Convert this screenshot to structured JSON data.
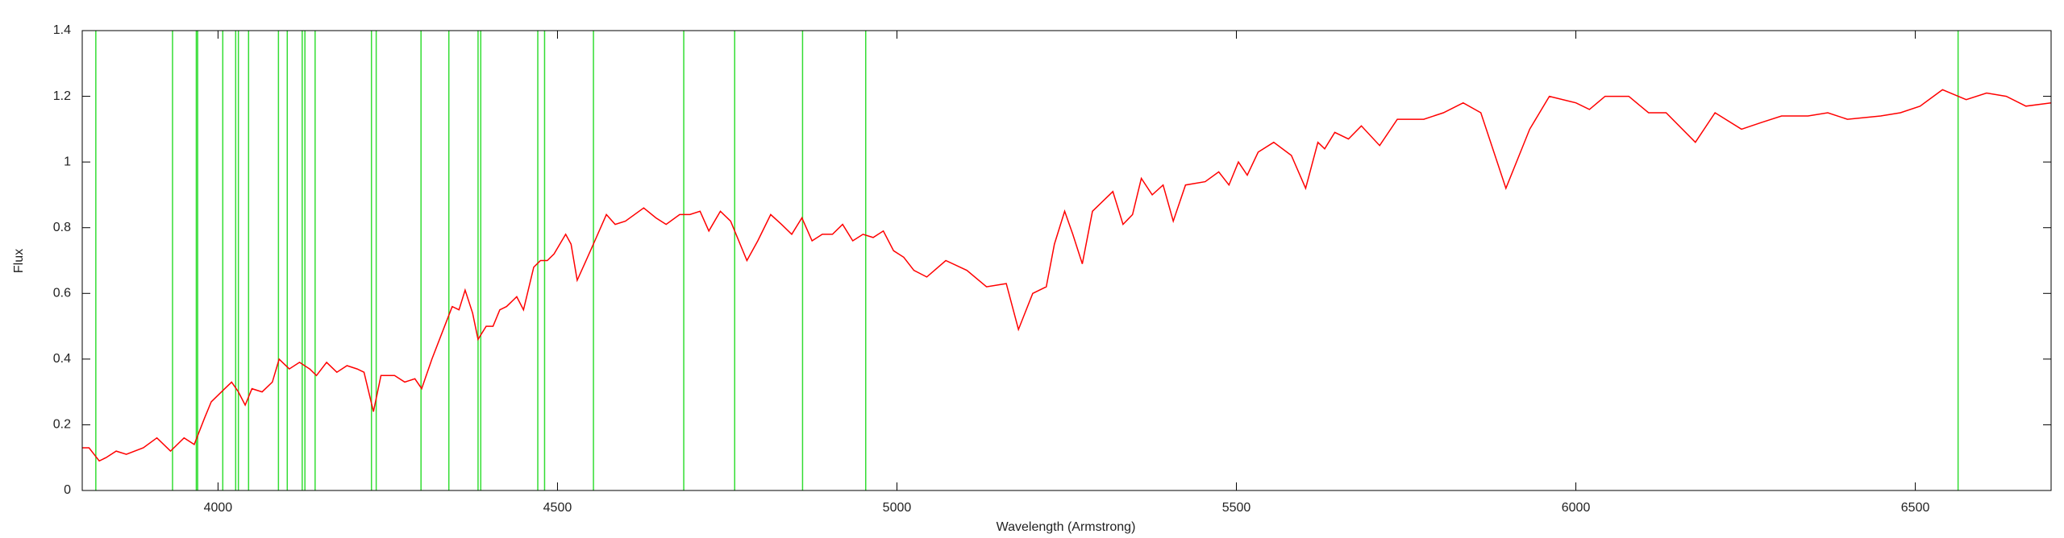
{
  "chart_data": {
    "type": "line",
    "xlabel": "Wavelength (Armstrong)",
    "ylabel": "Flux",
    "xlim": [
      3800,
      6700
    ],
    "ylim": [
      0,
      1.4
    ],
    "xticks": [
      4000,
      4500,
      5000,
      5500,
      6000,
      6500
    ],
    "yticks": [
      0,
      0.2,
      0.4,
      0.6,
      0.8,
      1,
      1.2,
      1.4
    ],
    "x": [
      3800,
      3810,
      3825,
      3835,
      3850,
      3865,
      3890,
      3910,
      3930,
      3950,
      3965,
      3980,
      3990,
      4010,
      4020,
      4030,
      4040,
      4050,
      4065,
      4080,
      4090,
      4105,
      4120,
      4135,
      4145,
      4160,
      4175,
      4190,
      4205,
      4215,
      4229,
      4240,
      4260,
      4275,
      4290,
      4300,
      4315,
      4330,
      4345,
      4355,
      4364,
      4375,
      4383,
      4395,
      4405,
      4415,
      4425,
      4440,
      4450,
      4465,
      4475,
      4485,
      4495,
      4512,
      4520,
      4529,
      4540,
      4555,
      4572,
      4585,
      4600,
      4627,
      4645,
      4660,
      4680,
      4695,
      4710,
      4723,
      4740,
      4755,
      4779,
      4795,
      4814,
      4830,
      4845,
      4860,
      4875,
      4890,
      4905,
      4920,
      4935,
      4950,
      4965,
      4980,
      4995,
      5010,
      5025,
      5044,
      5072,
      5103,
      5132,
      5161,
      5179,
      5200,
      5220,
      5232,
      5247,
      5259,
      5273,
      5288,
      5318,
      5333,
      5347,
      5360,
      5376,
      5392,
      5407,
      5425,
      5454,
      5474,
      5489,
      5503,
      5516,
      5532,
      5555,
      5581,
      5602,
      5620,
      5630,
      5645,
      5665,
      5684,
      5711,
      5737,
      5776,
      5805,
      5834,
      5860,
      5897,
      5932,
      5961,
      6000,
      6020,
      6043,
      6078,
      6107,
      6133,
      6176,
      6205,
      6244,
      6273,
      6303,
      6342,
      6371,
      6400,
      6449,
      6478,
      6507,
      6540,
      6575,
      6605,
      6634,
      6663,
      6700
    ],
    "series": [
      {
        "color": "#ff0000",
        "values": [
          0.13,
          0.13,
          0.09,
          0.1,
          0.12,
          0.11,
          0.13,
          0.16,
          0.12,
          0.16,
          0.14,
          0.22,
          0.27,
          0.31,
          0.33,
          0.3,
          0.26,
          0.31,
          0.3,
          0.33,
          0.4,
          0.37,
          0.39,
          0.37,
          0.35,
          0.39,
          0.36,
          0.38,
          0.37,
          0.36,
          0.24,
          0.35,
          0.35,
          0.33,
          0.34,
          0.31,
          0.4,
          0.48,
          0.56,
          0.55,
          0.61,
          0.54,
          0.46,
          0.5,
          0.5,
          0.55,
          0.56,
          0.59,
          0.55,
          0.68,
          0.7,
          0.7,
          0.72,
          0.78,
          0.75,
          0.64,
          0.69,
          0.76,
          0.84,
          0.81,
          0.82,
          0.86,
          0.83,
          0.81,
          0.84,
          0.84,
          0.85,
          0.79,
          0.85,
          0.82,
          0.7,
          0.76,
          0.84,
          0.81,
          0.78,
          0.83,
          0.76,
          0.78,
          0.78,
          0.81,
          0.76,
          0.78,
          0.77,
          0.79,
          0.73,
          0.71,
          0.67,
          0.65,
          0.7,
          0.67,
          0.62,
          0.63,
          0.49,
          0.6,
          0.62,
          0.75,
          0.85,
          0.78,
          0.69,
          0.85,
          0.91,
          0.81,
          0.84,
          0.95,
          0.9,
          0.93,
          0.82,
          0.93,
          0.94,
          0.97,
          0.93,
          1.0,
          0.96,
          1.03,
          1.06,
          1.02,
          0.92,
          1.06,
          1.04,
          1.09,
          1.07,
          1.11,
          1.05,
          1.13,
          1.13,
          1.15,
          1.18,
          1.15,
          0.92,
          1.1,
          1.2,
          1.18,
          1.16,
          1.2,
          1.2,
          1.15,
          1.15,
          1.06,
          1.15,
          1.1,
          1.12,
          1.14,
          1.14,
          1.15,
          1.13,
          1.14,
          1.15,
          1.17,
          1.22,
          1.19,
          1.21,
          1.2,
          1.17,
          1.18
        ]
      }
    ],
    "vlines": {
      "color": "#33dd33",
      "x": [
        3820,
        3933,
        3968,
        3970,
        4007,
        4026,
        4030,
        4045,
        4089,
        4102,
        4124,
        4128,
        4143,
        4226,
        4233,
        4299,
        4340,
        4383,
        4387,
        4471,
        4481,
        4553,
        4686,
        4761,
        4861,
        4954,
        6563
      ]
    }
  }
}
